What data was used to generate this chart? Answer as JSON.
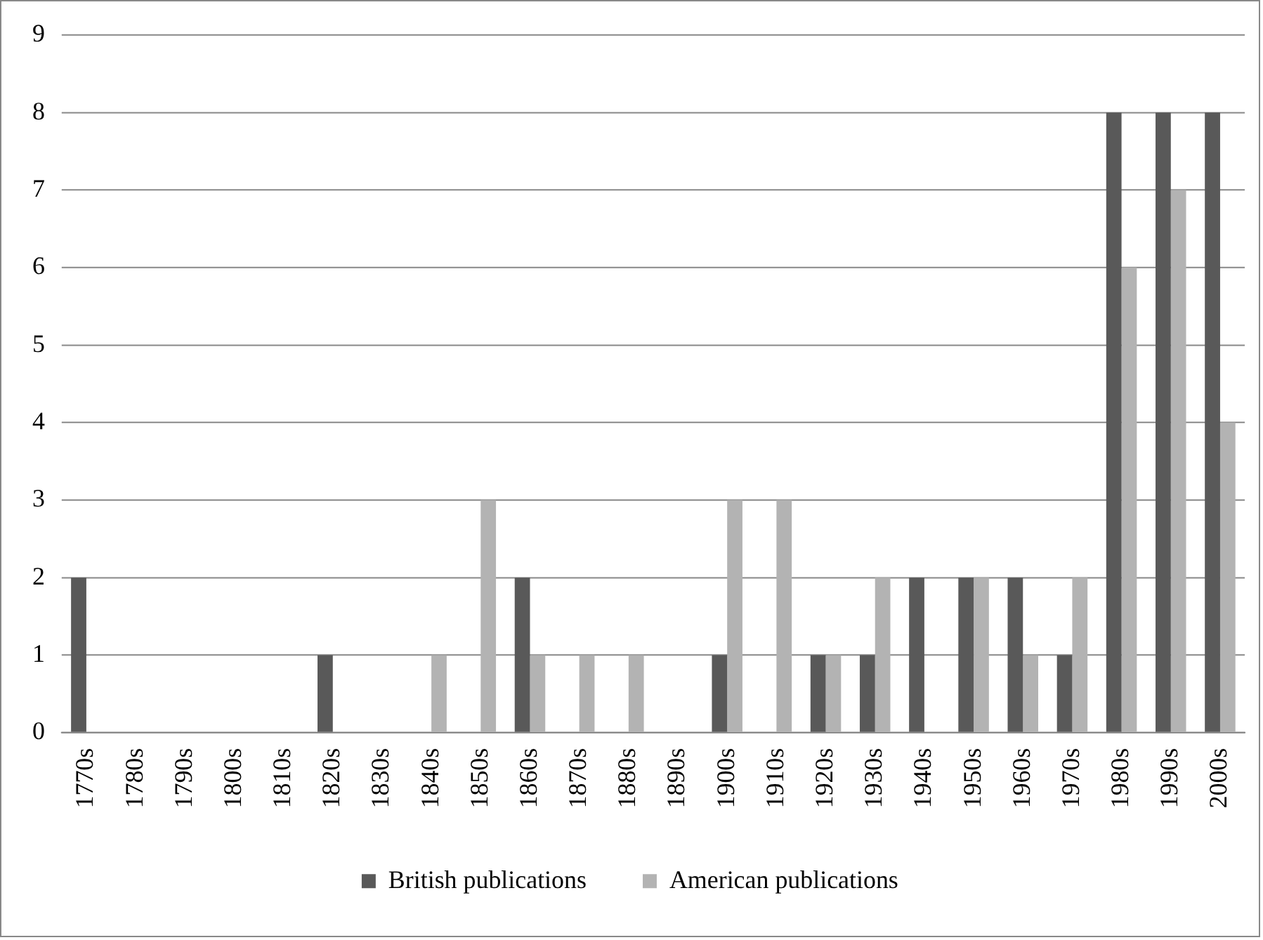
{
  "chart_data": {
    "type": "bar",
    "categories": [
      "1770s",
      "1780s",
      "1790s",
      "1800s",
      "1810s",
      "1820s",
      "1830s",
      "1840s",
      "1850s",
      "1860s",
      "1870s",
      "1880s",
      "1890s",
      "1900s",
      "1910s",
      "1920s",
      "1930s",
      "1940s",
      "1950s",
      "1960s",
      "1970s",
      "1980s",
      "1990s",
      "2000s"
    ],
    "series": [
      {
        "name": "British publications",
        "color": "#595959",
        "values": [
          2,
          0,
          0,
          0,
          0,
          1,
          0,
          0,
          0,
          2,
          0,
          0,
          0,
          1,
          0,
          1,
          1,
          2,
          2,
          2,
          1,
          8,
          8,
          8
        ]
      },
      {
        "name": "American publications",
        "color": "#b3b3b3",
        "values": [
          0,
          0,
          0,
          0,
          0,
          0,
          0,
          1,
          3,
          1,
          1,
          1,
          0,
          3,
          3,
          1,
          2,
          0,
          2,
          1,
          2,
          6,
          7,
          4
        ]
      }
    ],
    "ylim": [
      0,
      9
    ],
    "yticks": [
      0,
      1,
      2,
      3,
      4,
      5,
      6,
      7,
      8,
      9
    ],
    "grid": "y",
    "legend": "bottom"
  }
}
